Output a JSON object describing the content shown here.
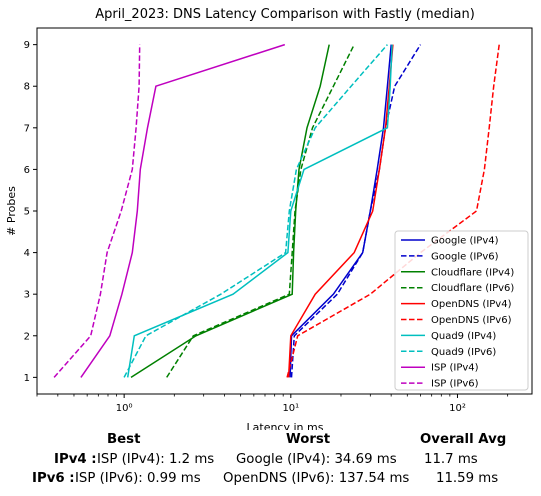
{
  "chart_data": {
    "type": "line",
    "title": "April_2023: DNS Latency Comparison with Fastly (median)",
    "xlabel": "Latency in ms",
    "ylabel": "# Probes",
    "xscale": "log",
    "xlim": [
      0.3,
      280
    ],
    "ylim": [
      0.6,
      9.4
    ],
    "xticks": [
      {
        "value": 1,
        "label": "10⁰"
      },
      {
        "value": 10,
        "label": "10¹"
      },
      {
        "value": 100,
        "label": "10²"
      }
    ],
    "yticks": [
      1,
      2,
      3,
      4,
      5,
      6,
      7,
      8,
      9
    ],
    "grid": false,
    "legend_position": "lower-right",
    "series": [
      {
        "name": "Google (IPv4)",
        "color": "#0000cc",
        "dash": "solid",
        "points": [
          [
            9.9,
            1
          ],
          [
            10.1,
            2
          ],
          [
            18,
            3
          ],
          [
            27,
            4
          ],
          [
            30,
            5
          ],
          [
            33,
            6
          ],
          [
            36,
            7
          ],
          [
            38,
            8
          ],
          [
            40,
            9
          ]
        ]
      },
      {
        "name": "Google (IPv6)",
        "color": "#0000cc",
        "dash": "dashed",
        "points": [
          [
            10.1,
            1
          ],
          [
            10.5,
            2
          ],
          [
            19,
            3
          ],
          [
            27,
            4
          ],
          [
            30,
            5
          ],
          [
            34,
            6
          ],
          [
            37,
            7
          ],
          [
            42,
            8
          ],
          [
            60,
            9
          ]
        ]
      },
      {
        "name": "Cloudflare (IPv4)",
        "color": "#008000",
        "dash": "solid",
        "points": [
          [
            1.1,
            1
          ],
          [
            2.7,
            2
          ],
          [
            10.2,
            3
          ],
          [
            10.4,
            4
          ],
          [
            10.7,
            5
          ],
          [
            11.2,
            6
          ],
          [
            12.5,
            7
          ],
          [
            15,
            8
          ],
          [
            17,
            9
          ]
        ]
      },
      {
        "name": "Cloudflare (IPv6)",
        "color": "#008000",
        "dash": "dashed",
        "points": [
          [
            1.8,
            1
          ],
          [
            2.6,
            2
          ],
          [
            9.8,
            3
          ],
          [
            10.2,
            4
          ],
          [
            10.6,
            5
          ],
          [
            11.5,
            6
          ],
          [
            13.5,
            7
          ],
          [
            18,
            8
          ],
          [
            24,
            9
          ]
        ]
      },
      {
        "name": "OpenDNS (IPv4)",
        "color": "#ff0000",
        "dash": "solid",
        "points": [
          [
            9.7,
            1
          ],
          [
            10,
            2
          ],
          [
            14,
            3
          ],
          [
            24,
            4
          ],
          [
            31,
            5
          ],
          [
            34,
            6
          ],
          [
            37,
            7
          ],
          [
            39,
            8
          ],
          [
            41,
            9
          ]
        ]
      },
      {
        "name": "OpenDNS (IPv6)",
        "color": "#ff0000",
        "dash": "dashed",
        "points": [
          [
            9.5,
            1
          ],
          [
            11,
            2
          ],
          [
            30,
            3
          ],
          [
            60,
            4
          ],
          [
            130,
            5
          ],
          [
            145,
            6
          ],
          [
            155,
            7
          ],
          [
            165,
            8
          ],
          [
            178,
            9
          ]
        ]
      },
      {
        "name": "Quad9 (IPv4)",
        "color": "#00bfbf",
        "dash": "solid",
        "points": [
          [
            1.05,
            1
          ],
          [
            1.15,
            2
          ],
          [
            4.5,
            3
          ],
          [
            9.6,
            4
          ],
          [
            10,
            5
          ],
          [
            12,
            6
          ],
          [
            38,
            7
          ],
          [
            39.5,
            8
          ],
          [
            40.5,
            9
          ]
        ]
      },
      {
        "name": "Quad9 (IPv6)",
        "color": "#00bfbf",
        "dash": "dashed",
        "points": [
          [
            1.0,
            1
          ],
          [
            1.35,
            2
          ],
          [
            3.8,
            3
          ],
          [
            9.3,
            4
          ],
          [
            9.8,
            5
          ],
          [
            10.8,
            6
          ],
          [
            14,
            7
          ],
          [
            23,
            8
          ],
          [
            38,
            9
          ]
        ]
      },
      {
        "name": "ISP (IPv4)",
        "color": "#bf00bf",
        "dash": "solid",
        "points": [
          [
            0.55,
            1
          ],
          [
            0.82,
            2
          ],
          [
            0.97,
            3
          ],
          [
            1.12,
            4
          ],
          [
            1.2,
            5
          ],
          [
            1.25,
            6
          ],
          [
            1.38,
            7
          ],
          [
            1.55,
            8
          ],
          [
            9.2,
            9
          ]
        ]
      },
      {
        "name": "ISP (IPv6)",
        "color": "#bf00bf",
        "dash": "dashed",
        "points": [
          [
            0.38,
            1
          ],
          [
            0.63,
            2
          ],
          [
            0.72,
            3
          ],
          [
            0.79,
            4
          ],
          [
            0.96,
            5
          ],
          [
            1.12,
            6
          ],
          [
            1.18,
            7
          ],
          [
            1.23,
            8
          ],
          [
            1.24,
            9
          ]
        ]
      }
    ]
  },
  "stats": {
    "headers": {
      "best": "Best",
      "worst": "Worst",
      "avg": "Overall Avg"
    },
    "ipv4": {
      "label": "IPv4 :",
      "best": "ISP (IPv4): 1.2 ms",
      "worst": "Google (IPv4): 34.69 ms",
      "avg": "11.7 ms"
    },
    "ipv6": {
      "label": "IPv6 :",
      "best": "ISP (IPv6): 0.99 ms",
      "worst": "OpenDNS (IPv6): 137.54 ms",
      "avg": "11.59 ms"
    }
  }
}
